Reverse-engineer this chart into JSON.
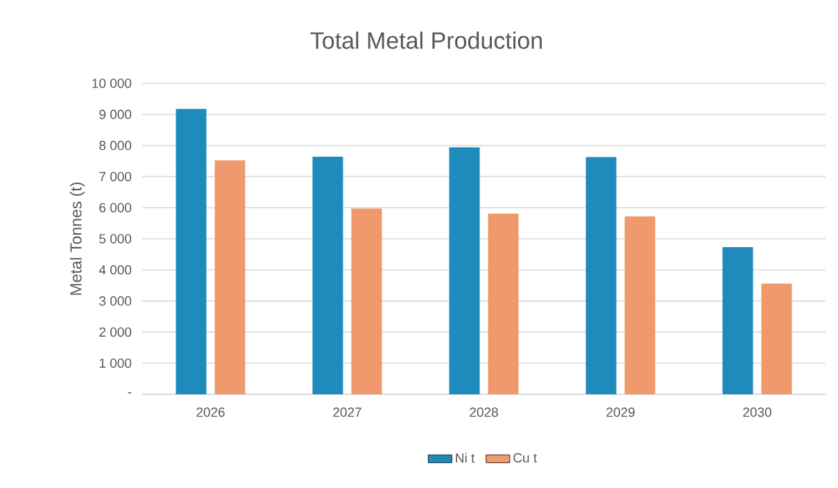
{
  "chart_data": {
    "type": "bar",
    "title": "Total Metal Production",
    "ylabel": "Metal Tonnes (t)",
    "categories": [
      "2026",
      "2027",
      "2028",
      "2029",
      "2030"
    ],
    "series": [
      {
        "name": "Ni t",
        "color": "#1f8bbd",
        "values": [
          9180,
          7640,
          7940,
          7630,
          4730
        ]
      },
      {
        "name": "Cu t",
        "color": "#ef996c",
        "values": [
          7520,
          5970,
          5810,
          5720,
          3560
        ]
      }
    ],
    "ylim": [
      0,
      10000
    ],
    "yticks": [
      {
        "value": 0,
        "label": "-"
      },
      {
        "value": 1000,
        "label": "1 000"
      },
      {
        "value": 2000,
        "label": "2 000"
      },
      {
        "value": 3000,
        "label": "3 000"
      },
      {
        "value": 4000,
        "label": "4 000"
      },
      {
        "value": 5000,
        "label": "5 000"
      },
      {
        "value": 6000,
        "label": "6 000"
      },
      {
        "value": 7000,
        "label": "7 000"
      },
      {
        "value": 8000,
        "label": "8 000"
      },
      {
        "value": 9000,
        "label": "9 000"
      },
      {
        "value": 10000,
        "label": "10 000"
      }
    ],
    "grid": "y",
    "legend": "bottom"
  }
}
